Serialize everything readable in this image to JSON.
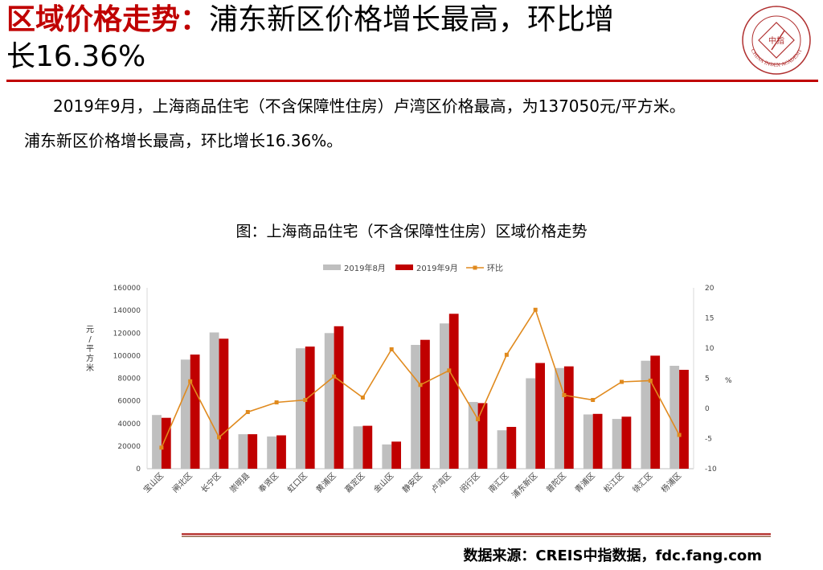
{
  "header": {
    "title_accent": "区域价格走势：",
    "title_rest": "浦东新区价格增长最高，环比增",
    "title_line2": "长16.36%",
    "logo_text": "CHINA INDEX ACADEMY",
    "logo_chars": "中指"
  },
  "body": {
    "paragraph1": "2019年9月，上海商品住宅（不含保障性住房）卢湾区价格最高，为137050元/平方米。",
    "paragraph2": "浦东新区价格增长最高，环比增长16.36%。"
  },
  "chart_title": "图：上海商品住宅（不含保障性住房）区域价格走势",
  "chart_data": {
    "type": "bar",
    "categories": [
      "宝山区",
      "闸北区",
      "长宁区",
      "崇明县",
      "奉贤区",
      "虹口区",
      "黄浦区",
      "嘉定区",
      "金山区",
      "静安区",
      "卢湾区",
      "闵行区",
      "南汇区",
      "浦东新区",
      "普陀区",
      "青浦区",
      "松江区",
      "徐汇区",
      "杨浦区"
    ],
    "series": [
      {
        "name": "2019年8月",
        "type": "bar",
        "axis": "left",
        "color": "#bfbfbf",
        "values": [
          47500,
          96500,
          120500,
          30500,
          28500,
          106500,
          120000,
          37500,
          21500,
          109500,
          128500,
          59000,
          34000,
          80000,
          89000,
          48000,
          44000,
          95500,
          91000
        ]
      },
      {
        "name": "2019年9月",
        "type": "bar",
        "axis": "left",
        "color": "#c00000",
        "values": [
          45000,
          101000,
          115000,
          30500,
          29500,
          108000,
          126000,
          38000,
          24000,
          114000,
          137050,
          58000,
          37000,
          93500,
          90500,
          48500,
          46000,
          100000,
          87500
        ]
      },
      {
        "name": "环比",
        "type": "line",
        "axis": "right",
        "color": "#e08a1e",
        "values": [
          -6.5,
          4.5,
          -4.8,
          -0.6,
          1.0,
          1.4,
          5.3,
          1.8,
          9.8,
          3.9,
          6.3,
          -1.8,
          8.9,
          16.36,
          2.2,
          1.4,
          4.4,
          4.6,
          -4.4
        ]
      }
    ],
    "ylabel": "元/平方米",
    "y2label": "%",
    "ylim": [
      0,
      160000
    ],
    "yticks": [
      0,
      20000,
      40000,
      60000,
      80000,
      100000,
      120000,
      140000,
      160000
    ],
    "y2lim": [
      -10,
      20
    ],
    "y2ticks": [
      -10,
      -5,
      0,
      5,
      10,
      15,
      20
    ],
    "legend": "top-center",
    "grid": false
  },
  "footer": {
    "source": "数据来源：CREIS中指数据，fdc.fang.com"
  },
  "colors": {
    "accent": "#c00000",
    "aug_bar": "#bfbfbf",
    "sep_bar": "#c00000",
    "mom_line": "#e08a1e",
    "rule": "#c0504d"
  }
}
